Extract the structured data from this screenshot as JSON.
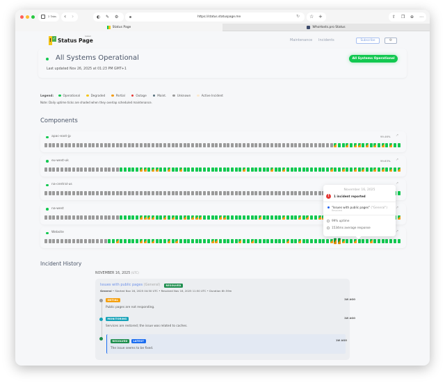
{
  "browser": {
    "tabs_count": "2 Tabs",
    "url": "https://status.statuspage.me",
    "tabs": [
      {
        "label": "Status Page",
        "active": true
      },
      {
        "label": "WhoHosts.pro Status",
        "active": false
      }
    ]
  },
  "header": {
    "logo_text": "Status Page",
    "logo_sub": "hosted",
    "nav": [
      "Maintenance",
      "Incidents"
    ],
    "subscribe": "Subscribe",
    "settings_icon": "gear-icon"
  },
  "status": {
    "title": "All Systems Operational",
    "updated": "Last updated Nov 26, 2025 at 01:23 PM GMT+1",
    "badge": "All Systems Operational",
    "color": "#12c850"
  },
  "legend": {
    "label": "Legend:",
    "items": [
      {
        "label": "Operational",
        "color": "#12c850"
      },
      {
        "label": "Degraded",
        "color": "#f5c518"
      },
      {
        "label": "Partial",
        "color": "#f39c12"
      },
      {
        "label": "Outage",
        "color": "#e53935"
      },
      {
        "label": "Maint.",
        "color": "#546e7a"
      },
      {
        "label": "Unknown",
        "color": "#9a9a9a"
      },
      {
        "label": "Active Incident",
        "color": "#fbe9d0"
      }
    ],
    "note": "Note: Daily uptime ticks are shaded when they overlap scheduled maintenance."
  },
  "components_title": "Components",
  "tick_codes": {
    "u": "unknown",
    "o": "operational",
    "p": "partial",
    "h": "selected"
  },
  "components": [
    {
      "name": "apac-east-jp",
      "uptime": "99.46%",
      "ticks": "uuuuuuuuuuuuuuuuuuuuuuuuuuuuuuuuuuuuuuuuuuuuuuuuuuuuuuuuuuuuuuuuuuuuuuuuupoopoppopopopopoo"
    },
    {
      "name": "eu-west-uk",
      "uptime": "99.63%",
      "ticks": "uuuuuuuuuuuuuuuuuuuoooooppoppoopoopooooooooooooooopoooooopoopooooooooooopoopoopopoopopopopoo"
    },
    {
      "name": "na-central-us",
      "uptime": "",
      "ticks": "uuuuuuuuuuuuuuuuuuuuuuuuuuuuuuuuuuuuuuuuuuuuuuuuuuuuuuuuuuuuuuuuuuuuuuuuuuuuuuuuuuuuuuuuoo"
    },
    {
      "name": "na-west",
      "uptime": "",
      "ticks": "uuuuuuuuuuuuuuuuuuuoooooppppoopopoopopppooooppoooooooopooooopooopopooppooopopopoopoopopoopoo"
    },
    {
      "name": "Website",
      "uptime": "",
      "ticks": "uuuuuuuuuuuuuuuuoopoooooppopooopopooooooooppooooopoopoooooooopoopooooooophhpoopooopoooooooo"
    }
  ],
  "tooltip": {
    "date": "November 16, 2025",
    "count": "1 incident reported",
    "incident": "\"Issues with public pages\"",
    "incident_tag": "(\"General\")",
    "incident_status": "Resolved",
    "uptime": "99% uptime",
    "response": "1534ms average response"
  },
  "history": {
    "title": "Incident History",
    "date": "NOVEMBER 16, 2025",
    "tz": "(UTC)",
    "incident": {
      "title": "Issues with public pages",
      "tag": "(General)",
      "badge": "RESOLVED",
      "meta_bold": "General",
      "meta": " • Started Nov 16, 2025 04:50 UTC • Resolved Nov 16, 2025 11:50 UTC • Duration 6h 59m",
      "updates": [
        {
          "badge": "INITIAL",
          "badge_color": "#f5a00f",
          "time": "1W AGO",
          "text": "Public pages are not responding.",
          "dot": "#9a9a9a"
        },
        {
          "badge": "MONITORING",
          "badge_color": "#17a2b8",
          "time": "1W AGO",
          "text": "Services are restored; the issue was related to caches.",
          "dot": "#17a2b8"
        },
        {
          "badge": "RESOLVED",
          "badge2": "LATEST",
          "badge_color": "#1e8e4e",
          "time": "1W AGO",
          "text": "The issue seems to be fixed.",
          "dot": "#1e8e4e"
        }
      ]
    }
  }
}
